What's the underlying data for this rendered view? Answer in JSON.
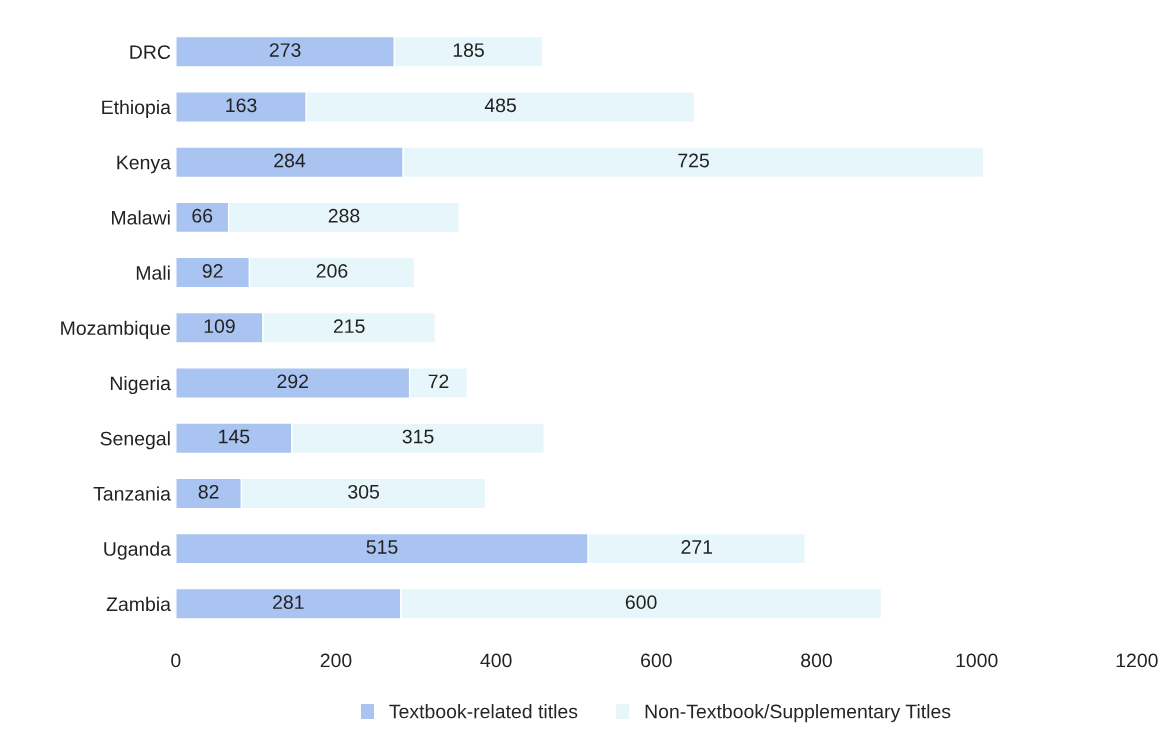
{
  "chart_data": {
    "type": "bar",
    "orientation": "horizontal",
    "stacked": true,
    "data_labels": true,
    "categories": [
      "DRC",
      "Ethiopia",
      "Kenya",
      "Malawi",
      "Mali",
      "Mozambique",
      "Nigeria",
      "Senegal",
      "Tanzania",
      "Uganda",
      "Zambia"
    ],
    "series": [
      {
        "name": "Textbook-related titles",
        "color": "#a9c4f0",
        "values": [
          273,
          163,
          284,
          66,
          92,
          109,
          292,
          145,
          82,
          515,
          281
        ]
      },
      {
        "name": "Non-Textbook/Supplementary Titles",
        "color": "#e6f6fa",
        "values": [
          185,
          485,
          725,
          288,
          206,
          215,
          72,
          315,
          305,
          271,
          600
        ]
      }
    ],
    "xlim": [
      0,
      1200
    ],
    "xticks": [
      0,
      200,
      400,
      600,
      800,
      1000,
      1200
    ],
    "grid": false,
    "legend": "bottom"
  }
}
